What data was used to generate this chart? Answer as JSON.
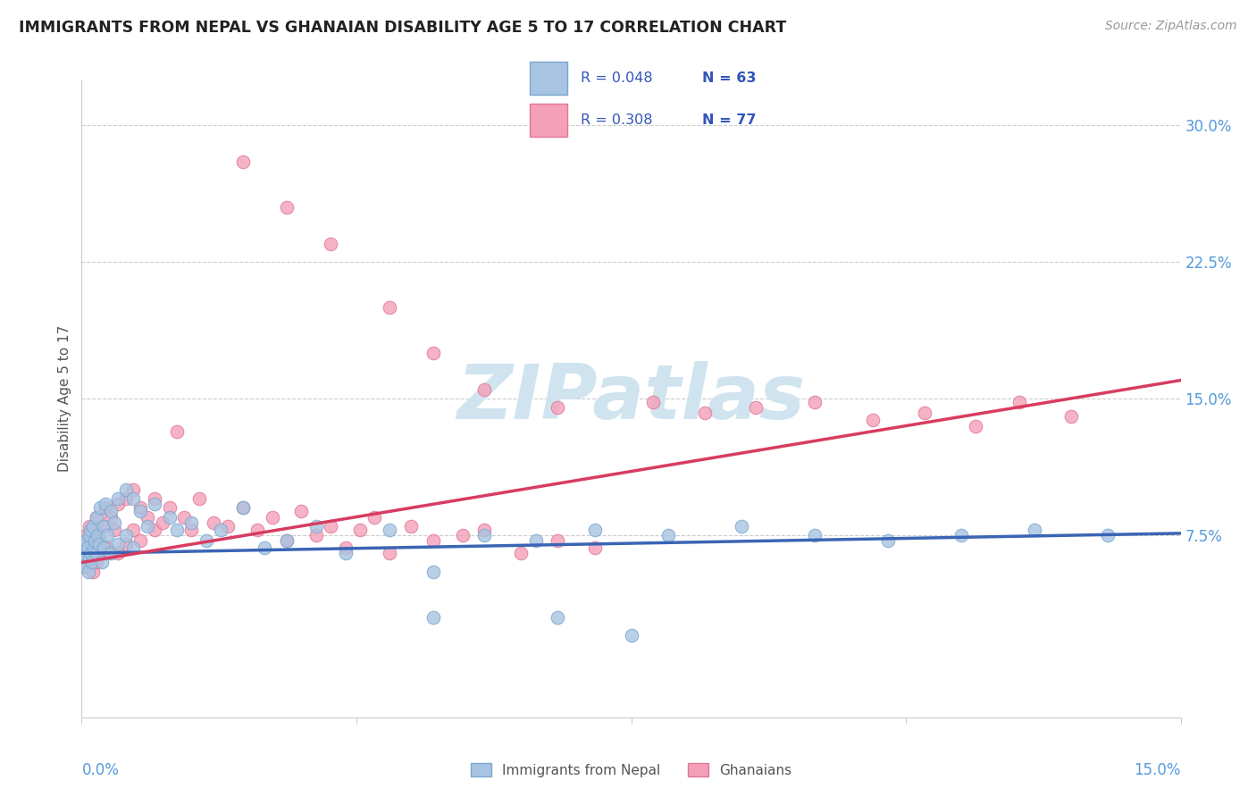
{
  "title": "IMMIGRANTS FROM NEPAL VS GHANAIAN DISABILITY AGE 5 TO 17 CORRELATION CHART",
  "source": "Source: ZipAtlas.com",
  "ylabel": "Disability Age 5 to 17",
  "ytick_labels": [
    "7.5%",
    "15.0%",
    "22.5%",
    "30.0%"
  ],
  "ytick_values": [
    0.075,
    0.15,
    0.225,
    0.3
  ],
  "xlim": [
    0.0,
    0.15
  ],
  "ylim": [
    -0.025,
    0.325
  ],
  "legend1_R": "0.048",
  "legend1_N": "63",
  "legend2_R": "0.308",
  "legend2_N": "77",
  "nepal_color": "#a8c4e2",
  "nepal_edge_color": "#7aa8d0",
  "ghana_color": "#f4a0b8",
  "ghana_edge_color": "#e07898",
  "nepal_line_color": "#3a65b5",
  "ghana_line_color": "#d83c60",
  "nepal_x": [
    0.0002,
    0.0003,
    0.0004,
    0.0005,
    0.0006,
    0.0007,
    0.0008,
    0.0009,
    0.001,
    0.001,
    0.0012,
    0.0013,
    0.0014,
    0.0015,
    0.0016,
    0.0018,
    0.002,
    0.002,
    0.0022,
    0.0024,
    0.0025,
    0.0027,
    0.003,
    0.003,
    0.0032,
    0.0035,
    0.004,
    0.004,
    0.0045,
    0.005,
    0.005,
    0.006,
    0.006,
    0.007,
    0.007,
    0.008,
    0.009,
    0.01,
    0.012,
    0.013,
    0.015,
    0.017,
    0.019,
    0.022,
    0.025,
    0.028,
    0.032,
    0.036,
    0.042,
    0.048,
    0.055,
    0.062,
    0.07,
    0.08,
    0.09,
    0.1,
    0.11,
    0.12,
    0.13,
    0.14,
    0.048,
    0.065,
    0.075
  ],
  "nepal_y": [
    0.06,
    0.065,
    0.07,
    0.058,
    0.072,
    0.063,
    0.068,
    0.055,
    0.075,
    0.062,
    0.078,
    0.065,
    0.06,
    0.08,
    0.068,
    0.072,
    0.085,
    0.065,
    0.075,
    0.07,
    0.09,
    0.06,
    0.08,
    0.068,
    0.092,
    0.075,
    0.088,
    0.065,
    0.082,
    0.095,
    0.07,
    0.1,
    0.075,
    0.095,
    0.068,
    0.088,
    0.08,
    0.092,
    0.085,
    0.078,
    0.082,
    0.072,
    0.078,
    0.09,
    0.068,
    0.072,
    0.08,
    0.065,
    0.078,
    0.055,
    0.075,
    0.072,
    0.078,
    0.075,
    0.08,
    0.075,
    0.072,
    0.075,
    0.078,
    0.075,
    0.03,
    0.03,
    0.02
  ],
  "ghana_x": [
    0.0002,
    0.0003,
    0.0004,
    0.0005,
    0.0006,
    0.0007,
    0.0008,
    0.001,
    0.001,
    0.0012,
    0.0014,
    0.0015,
    0.0016,
    0.0018,
    0.002,
    0.002,
    0.0022,
    0.0025,
    0.003,
    0.003,
    0.0032,
    0.0035,
    0.004,
    0.0045,
    0.005,
    0.005,
    0.006,
    0.006,
    0.007,
    0.007,
    0.008,
    0.008,
    0.009,
    0.01,
    0.01,
    0.011,
    0.012,
    0.013,
    0.014,
    0.015,
    0.016,
    0.018,
    0.02,
    0.022,
    0.024,
    0.026,
    0.028,
    0.03,
    0.032,
    0.034,
    0.036,
    0.038,
    0.04,
    0.042,
    0.045,
    0.048,
    0.052,
    0.055,
    0.06,
    0.065,
    0.07,
    0.078,
    0.085,
    0.092,
    0.1,
    0.108,
    0.115,
    0.122,
    0.128,
    0.135,
    0.022,
    0.028,
    0.034,
    0.042,
    0.048,
    0.055,
    0.065
  ],
  "ghana_y": [
    0.058,
    0.065,
    0.07,
    0.062,
    0.075,
    0.06,
    0.068,
    0.072,
    0.08,
    0.065,
    0.078,
    0.055,
    0.07,
    0.068,
    0.085,
    0.06,
    0.075,
    0.072,
    0.08,
    0.065,
    0.09,
    0.068,
    0.085,
    0.078,
    0.092,
    0.065,
    0.095,
    0.07,
    0.1,
    0.078,
    0.09,
    0.072,
    0.085,
    0.095,
    0.078,
    0.082,
    0.09,
    0.132,
    0.085,
    0.078,
    0.095,
    0.082,
    0.08,
    0.09,
    0.078,
    0.085,
    0.072,
    0.088,
    0.075,
    0.08,
    0.068,
    0.078,
    0.085,
    0.065,
    0.08,
    0.072,
    0.075,
    0.078,
    0.065,
    0.072,
    0.068,
    0.148,
    0.142,
    0.145,
    0.148,
    0.138,
    0.142,
    0.135,
    0.148,
    0.14,
    0.28,
    0.255,
    0.235,
    0.2,
    0.175,
    0.155,
    0.145
  ]
}
